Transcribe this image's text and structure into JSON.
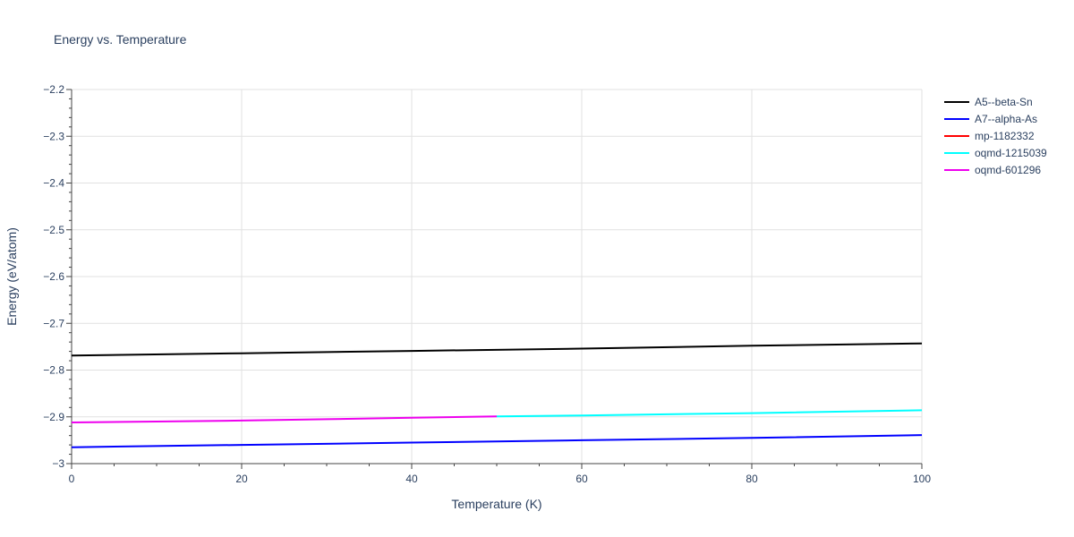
{
  "chart_data": {
    "type": "line",
    "title": "Energy vs. Temperature",
    "xlabel": "Temperature (K)",
    "ylabel": "Energy (eV/atom)",
    "xlim": [
      0,
      100
    ],
    "ylim": [
      -3.0,
      -2.2
    ],
    "x_ticks": [
      0,
      20,
      40,
      60,
      80,
      100
    ],
    "y_ticks": [
      -2.2,
      -2.3,
      -2.4,
      -2.5,
      -2.6,
      -2.7,
      -2.8,
      -2.9,
      -3
    ],
    "y_tick_labels": [
      "−2.2",
      "−2.3",
      "−2.4",
      "−2.5",
      "−2.6",
      "−2.7",
      "−2.8",
      "−2.9",
      "−3"
    ],
    "grid": true,
    "legend_position": "top-right",
    "series": [
      {
        "name": "A5--beta-Sn",
        "color": "#000000",
        "x": [
          0,
          20,
          40,
          60,
          80,
          100
        ],
        "y": [
          -2.769,
          -2.764,
          -2.759,
          -2.754,
          -2.748,
          -2.743
        ]
      },
      {
        "name": "A7--alpha-As",
        "color": "#0000ff",
        "x": [
          0,
          20,
          40,
          60,
          80,
          100
        ],
        "y": [
          -2.965,
          -2.96,
          -2.955,
          -2.95,
          -2.945,
          -2.939
        ]
      },
      {
        "name": "mp-1182332",
        "color": "#ff0000",
        "x": [],
        "y": []
      },
      {
        "name": "oqmd-1215039",
        "color": "#00ffff",
        "x": [
          50,
          60,
          80,
          100
        ],
        "y": [
          -2.899,
          -2.897,
          -2.892,
          -2.886
        ]
      },
      {
        "name": "oqmd-601296",
        "color": "#ee00ee",
        "x": [
          0,
          10,
          20,
          30,
          40,
          50
        ],
        "y": [
          -2.912,
          -2.91,
          -2.908,
          -2.905,
          -2.902,
          -2.899
        ]
      }
    ]
  }
}
